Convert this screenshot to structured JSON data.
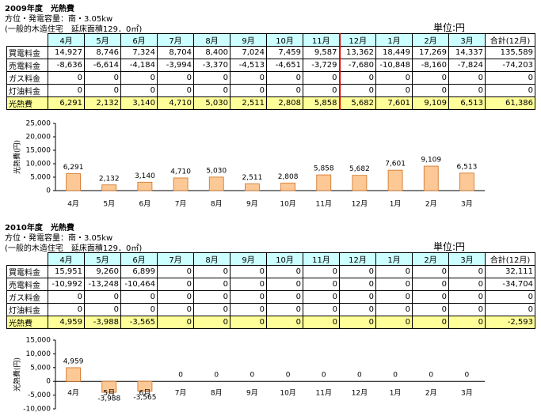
{
  "sections": [
    {
      "title": "2009年度　光熱費",
      "subtitle": "方位・発電容量：南・3.05kw",
      "note": "(一般的木造住宅　延床面積129．0㎡)",
      "unit": "単位:円",
      "table": {
        "header": [
          "4月",
          "5月",
          "6月",
          "7月",
          "8月",
          "9月",
          "10月",
          "11月",
          "12月",
          "1月",
          "2月",
          "3月",
          "合計(12月)"
        ],
        "rows": [
          [
            "買電料金",
            "14,927",
            "8,746",
            "7,324",
            "8,704",
            "8,400",
            "7,024",
            "7,459",
            "9,587",
            "13,362",
            "18,449",
            "17,269",
            "14,337",
            "135,589"
          ],
          [
            "売電料金",
            "-8,636",
            "-6,614",
            "-4,184",
            "-3,994",
            "-3,370",
            "-4,513",
            "-4,651",
            "-3,729",
            "-7,680",
            "-10,848",
            "-8,160",
            "-7,824",
            "-74,203"
          ],
          [
            "ガス料金",
            "0",
            "0",
            "0",
            "0",
            "0",
            "0",
            "0",
            "0",
            "0",
            "0",
            "0",
            "0",
            "0"
          ],
          [
            "灯油料金",
            "0",
            "0",
            "0",
            "0",
            "0",
            "0",
            "0",
            "0",
            "0",
            "0",
            "0",
            "0",
            "0"
          ],
          [
            "光熱費",
            "6,291",
            "2,132",
            "3,140",
            "4,710",
            "5,030",
            "2,511",
            "2,808",
            "5,858",
            "5,682",
            "7,601",
            "9,109",
            "6,513",
            "61,386"
          ]
        ]
      }
    },
    {
      "title": "2010年度　光熱費",
      "subtitle": "方位・発電容量：南・3.05kw",
      "note": "(一般的木造住宅　延床面積129．0㎡)",
      "unit": "単位:円",
      "table": {
        "header": [
          "4月",
          "5月",
          "6月",
          "7月",
          "8月",
          "9月",
          "10月",
          "11月",
          "12月",
          "1月",
          "2月",
          "3月",
          "合計(12月)"
        ],
        "rows": [
          [
            "買電料金",
            "15,951",
            "9,260",
            "6,899",
            "0",
            "0",
            "0",
            "0",
            "0",
            "0",
            "0",
            "0",
            "0",
            "32,111"
          ],
          [
            "売電料金",
            "-10,992",
            "-13,248",
            "-10,464",
            "0",
            "0",
            "0",
            "0",
            "0",
            "0",
            "0",
            "0",
            "0",
            "-34,704"
          ],
          [
            "ガス料金",
            "0",
            "0",
            "0",
            "0",
            "0",
            "0",
            "0",
            "0",
            "0",
            "0",
            "0",
            "0",
            "0"
          ],
          [
            "灯油料金",
            "0",
            "0",
            "0",
            "0",
            "0",
            "0",
            "0",
            "0",
            "0",
            "0",
            "0",
            "0",
            "0"
          ],
          [
            "光熱費",
            "4,959",
            "-3,988",
            "-3,565",
            "0",
            "0",
            "0",
            "0",
            "0",
            "0",
            "0",
            "0",
            "0",
            "-2,593"
          ]
        ]
      }
    }
  ],
  "chart_data": [
    {
      "type": "bar",
      "y_label": "光熱費(円)",
      "color": "#fcc896",
      "categories": [
        "4月",
        "5月",
        "6月",
        "7月",
        "8月",
        "9月",
        "10月",
        "11月",
        "12月",
        "1月",
        "2月",
        "3月"
      ],
      "values": [
        6291,
        2132,
        3140,
        4710,
        5030,
        2511,
        2808,
        5858,
        5682,
        7601,
        9109,
        6513
      ],
      "value_labels": [
        "6,291",
        "2,132",
        "3,140",
        "4,710",
        "5,030",
        "2,511",
        "2,808",
        "5,858",
        "5,682",
        "7,601",
        "9,109",
        "6,513"
      ],
      "ylim": [
        0,
        25000
      ],
      "yticks": [
        0,
        {
          "value": 5000,
          "label": "5,000"
        },
        {
          "value": 10000,
          "label": "10,000"
        },
        {
          "value": 15000,
          "label": "15,000"
        },
        {
          "value": 20000,
          "label": "20,000"
        },
        {
          "value": 25000,
          "label": "25,000"
        }
      ]
    },
    {
      "type": "bar",
      "y_label": "光熱費(円)",
      "color": "#fcc896",
      "categories": [
        "4月",
        "5月",
        "6月",
        "7月",
        "8月",
        "9月",
        "10月",
        "11月",
        "12月",
        "1月",
        "2月",
        "3月"
      ],
      "values": [
        4959,
        -3988,
        -3565,
        0,
        0,
        0,
        0,
        0,
        0,
        0,
        0,
        0
      ],
      "value_labels": [
        "4,959",
        "-3,988",
        "-3,565",
        "0",
        "0",
        "0",
        "0",
        "0",
        "0",
        "0",
        "0",
        "0"
      ],
      "ylim": [
        -10000,
        15000
      ],
      "yticks": [
        {
          "value": -10000,
          "label": "-10,000"
        },
        {
          "value": -5000,
          "label": "-5,000"
        },
        0,
        {
          "value": 5000,
          "label": "5,000"
        },
        {
          "value": 10000,
          "label": "10,000"
        },
        {
          "value": 15000,
          "label": "15,000"
        }
      ]
    }
  ]
}
